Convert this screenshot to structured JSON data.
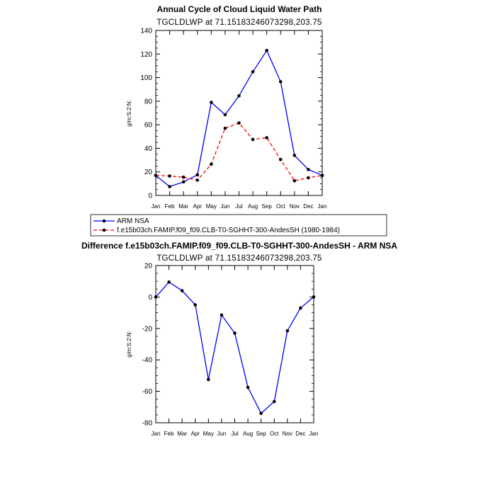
{
  "months": [
    "Jan",
    "Feb",
    "Mar",
    "Apr",
    "May",
    "Jun",
    "Jul",
    "Aug",
    "Sep",
    "Oct",
    "Nov",
    "Dec",
    "Jan"
  ],
  "chart_data": [
    {
      "type": "line",
      "title": "Annual Cycle of Cloud Liquid Water Path",
      "subtitle": "TGCLDLWP at 71.15183246073298,203.75",
      "ylabel": "g/m:S:2:N:",
      "ylim": [
        0,
        140
      ],
      "yticks": [
        0,
        20,
        40,
        60,
        80,
        100,
        120,
        140
      ],
      "series": [
        {
          "name": "ARM NSA",
          "color": "#0000ff",
          "dash": "solid",
          "values": [
            17,
            7.5,
            11.5,
            17.5,
            79,
            68.5,
            84.5,
            105,
            123,
            96.5,
            34,
            22,
            17
          ]
        },
        {
          "name": "f.e15b03ch.FAMIP.f09_f09.CLB-T0-SGHHT-300-AndesSH (1980-1984)",
          "color": "#ff0000",
          "dash": "dashed",
          "values": [
            17,
            16.5,
            15.5,
            13,
            26.5,
            57,
            61.5,
            47.5,
            49,
            30.5,
            12.5,
            15,
            17
          ]
        }
      ]
    },
    {
      "type": "line",
      "title": "Difference f.e15b03ch.FAMIP.f09_f09.CLB-T0-SGHHT-300-AndesSH - ARM NSA",
      "subtitle": "TGCLDLWP at 71.15183246073298,203.75",
      "ylabel": "g/m:S:2:N:",
      "ylim": [
        -80,
        20
      ],
      "yticks": [
        20,
        0,
        -20,
        -40,
        -60,
        -80
      ],
      "series": [
        {
          "name": "Difference",
          "color": "#0000ff",
          "dash": "solid",
          "values": [
            0,
            9.5,
            4,
            -5,
            -52.5,
            -11.5,
            -23,
            -57.5,
            -74,
            -66.5,
            -21.5,
            -7,
            0
          ]
        }
      ]
    }
  ]
}
